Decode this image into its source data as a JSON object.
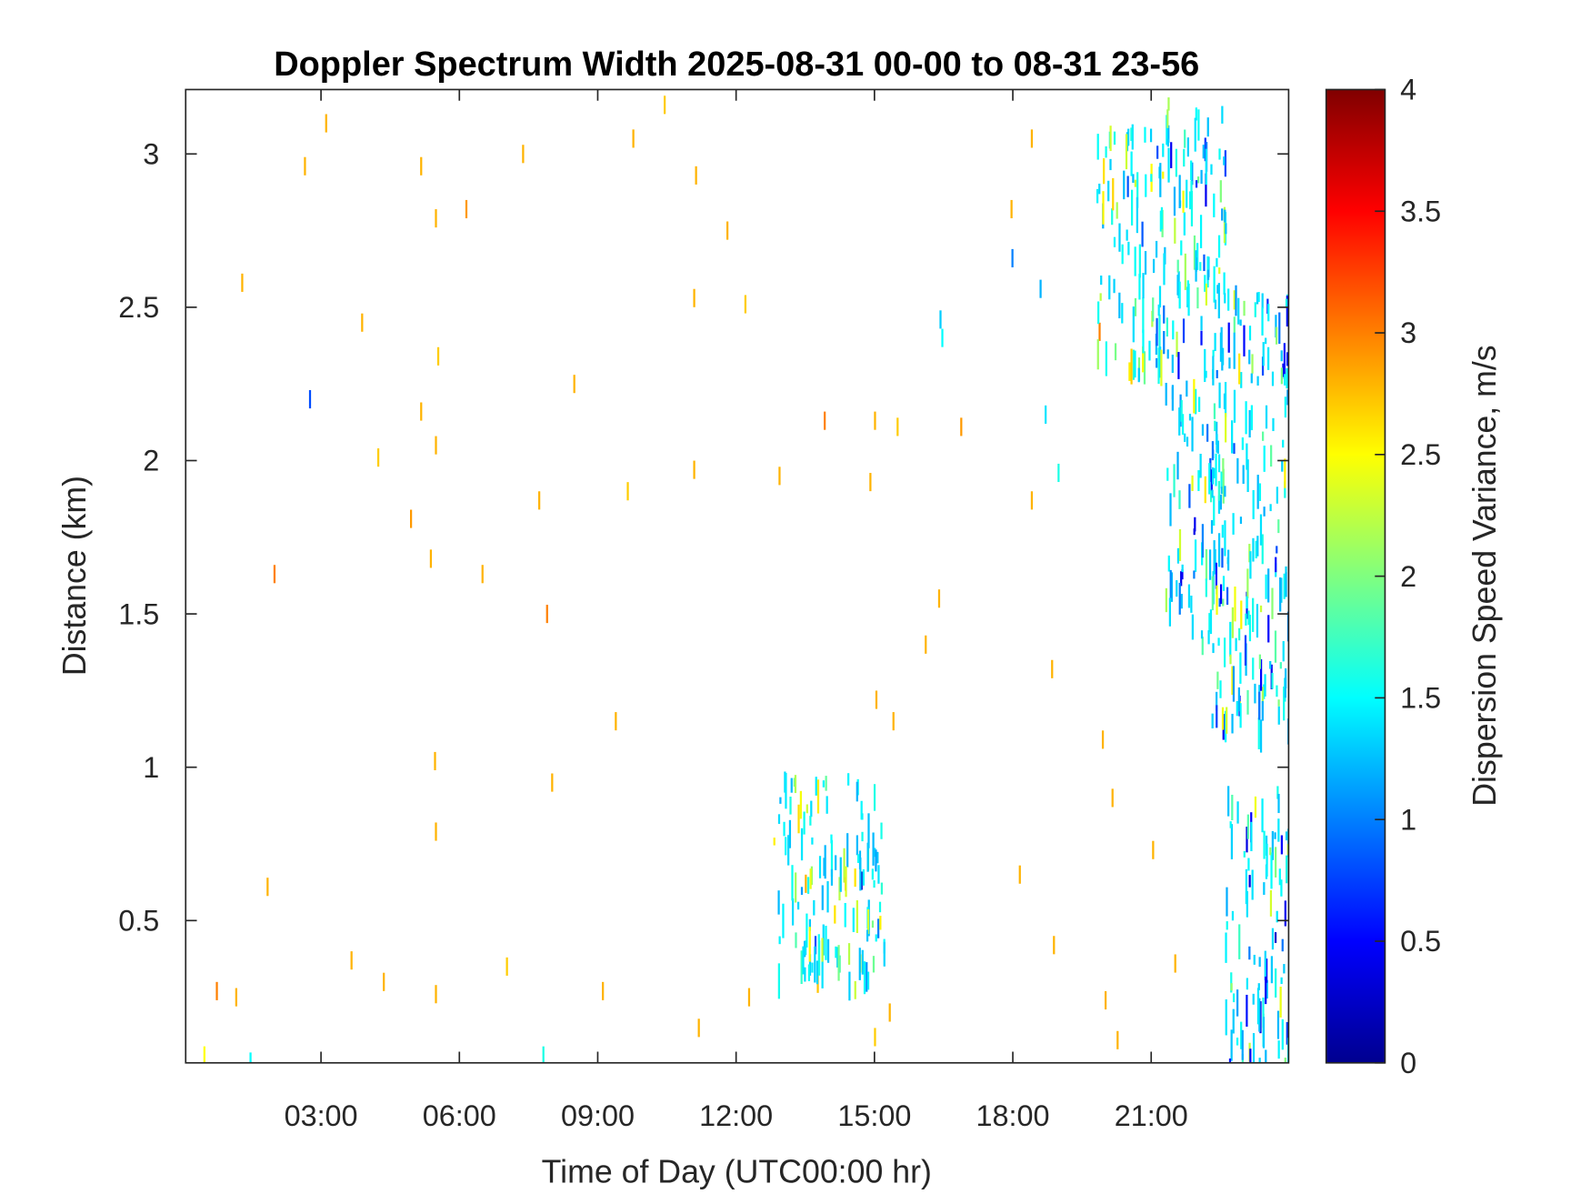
{
  "chart_data": {
    "type": "heatmap",
    "title": "Doppler Spectrum Width 2025-08-31 00-00 to 08-31 23-56",
    "xlabel": "Time of Day (UTC00:00 hr)",
    "ylabel": "Distance (km)",
    "colorbar": {
      "label": "Dispersion Speed Variance, m/s",
      "colormap": "jet",
      "range": [
        0,
        4
      ],
      "ticks": [
        0,
        0.5,
        1,
        1.5,
        2,
        2.5,
        3,
        3.5,
        4
      ],
      "tick_labels": [
        "0",
        "0.5",
        "1",
        "1.5",
        "2",
        "2.5",
        "3",
        "3.5",
        "4"
      ]
    },
    "xlim": [
      0.066,
      23.98
    ],
    "ylim": [
      0.036,
      3.21
    ],
    "x_ticks": [
      3,
      6,
      9,
      12,
      15,
      18,
      21
    ],
    "x_tick_labels": [
      "03:00",
      "06:00",
      "09:00",
      "12:00",
      "15:00",
      "18:00",
      "21:00"
    ],
    "y_ticks": [
      0.5,
      1,
      1.5,
      2,
      2.5,
      3
    ],
    "y_tick_labels": [
      "0.5",
      "1",
      "1.5",
      "2",
      "2.5",
      "3"
    ],
    "grid": false,
    "background": "#ffffff",
    "points_fields": [
      "time_hr",
      "distance_km",
      "width_m_s"
    ],
    "points": [
      [
        2.63,
        2.96,
        2.8
      ],
      [
        3.09,
        3.1,
        2.8
      ],
      [
        5.15,
        2.96,
        2.8
      ],
      [
        5.47,
        2.79,
        2.8
      ],
      [
        6.13,
        2.82,
        2.9
      ],
      [
        5.52,
        2.34,
        2.7
      ],
      [
        5.15,
        2.16,
        2.8
      ],
      [
        5.47,
        2.05,
        2.8
      ],
      [
        4.93,
        1.81,
        2.9
      ],
      [
        1.97,
        1.63,
        3.0
      ],
      [
        1.27,
        2.58,
        2.8
      ],
      [
        3.87,
        2.45,
        2.8
      ],
      [
        4.22,
        2.01,
        2.7
      ],
      [
        7.88,
        1.5,
        3.0
      ],
      [
        8.47,
        2.25,
        2.8
      ],
      [
        7.36,
        3.0,
        2.8
      ],
      [
        9.75,
        3.05,
        2.8
      ],
      [
        10.43,
        3.16,
        2.7
      ],
      [
        11.11,
        2.93,
        2.8
      ],
      [
        11.79,
        2.75,
        2.8
      ],
      [
        12.18,
        2.51,
        2.7
      ],
      [
        11.07,
        2.53,
        2.8
      ],
      [
        13.9,
        2.13,
        3.0
      ],
      [
        14.99,
        2.13,
        2.8
      ],
      [
        15.48,
        2.11,
        2.7
      ],
      [
        16.86,
        2.11,
        2.9
      ],
      [
        14.89,
        1.93,
        2.8
      ],
      [
        12.92,
        1.95,
        2.8
      ],
      [
        11.07,
        1.97,
        2.8
      ],
      [
        9.63,
        1.9,
        2.7
      ],
      [
        7.71,
        1.87,
        2.8
      ],
      [
        6.48,
        1.63,
        2.8
      ],
      [
        5.36,
        1.68,
        2.8
      ],
      [
        9.37,
        1.15,
        2.8
      ],
      [
        7.99,
        0.95,
        2.8
      ],
      [
        5.45,
        1.02,
        2.8
      ],
      [
        5.47,
        0.79,
        2.8
      ],
      [
        1.82,
        0.61,
        2.8
      ],
      [
        3.64,
        0.37,
        2.8
      ],
      [
        4.34,
        0.3,
        2.8
      ],
      [
        5.47,
        0.26,
        2.8
      ],
      [
        7.01,
        0.35,
        2.7
      ],
      [
        9.09,
        0.27,
        2.8
      ],
      [
        11.17,
        0.15,
        2.8
      ],
      [
        0.72,
        0.27,
        3.0
      ],
      [
        1.14,
        0.25,
        2.8
      ],
      [
        14.99,
        0.12,
        2.7
      ],
      [
        15.31,
        0.2,
        2.8
      ],
      [
        18.87,
        0.42,
        2.8
      ],
      [
        19.99,
        0.24,
        2.8
      ],
      [
        20.25,
        0.11,
        2.8
      ],
      [
        21.5,
        0.36,
        2.8
      ],
      [
        18.13,
        0.65,
        2.8
      ],
      [
        18.83,
        1.32,
        2.8
      ],
      [
        16.09,
        1.4,
        2.8
      ],
      [
        16.38,
        1.55,
        2.8
      ],
      [
        18.39,
        1.87,
        2.8
      ],
      [
        17.95,
        2.82,
        2.8
      ],
      [
        18.39,
        3.05,
        2.8
      ],
      [
        19.86,
        2.42,
        3.0
      ],
      [
        19.93,
        1.09,
        2.8
      ],
      [
        21.02,
        0.73,
        2.8
      ],
      [
        20.14,
        0.9,
        2.8
      ],
      [
        15.02,
        1.22,
        2.8
      ],
      [
        15.39,
        1.15,
        2.8
      ],
      [
        13.49,
        0.62,
        2.8
      ],
      [
        14.56,
        0.64,
        2.6
      ],
      [
        14.12,
        0.52,
        2.6
      ],
      [
        14.67,
        0.36,
        2.5
      ],
      [
        12.26,
        0.25,
        2.8
      ],
      [
        2.74,
        2.2,
        0.8
      ],
      [
        16.41,
        2.46,
        1.3
      ],
      [
        16.45,
        2.4,
        1.5
      ],
      [
        17.97,
        2.66,
        1.0
      ],
      [
        18.58,
        2.56,
        1.2
      ],
      [
        18.69,
        2.15,
        1.4
      ],
      [
        18.97,
        1.96,
        1.6
      ],
      [
        14.7,
        0.63,
        0.3
      ],
      [
        13.7,
        0.42,
        0.8
      ],
      [
        1.45,
        0.04,
        1.5
      ],
      [
        7.8,
        0.06,
        1.6
      ],
      [
        0.45,
        0.06,
        2.5
      ]
    ],
    "echo_regions": [
      {
        "time_hr": [
          21.3,
          22.6
        ],
        "distance_km": [
          1.4,
          3.2
        ],
        "width_m_s": [
          0.4,
          2.6
        ]
      },
      {
        "time_hr": [
          22.3,
          23.98
        ],
        "distance_km": [
          1.15,
          2.6
        ],
        "width_m_s": [
          0.4,
          2.6
        ]
      },
      {
        "time_hr": [
          22.6,
          23.98
        ],
        "distance_km": [
          0.04,
          0.95
        ],
        "width_m_s": [
          0.2,
          2.6
        ]
      },
      {
        "time_hr": [
          19.8,
          21.3
        ],
        "distance_km": [
          2.3,
          3.1
        ],
        "width_m_s": [
          0.8,
          2.8
        ]
      },
      {
        "time_hr": [
          12.8,
          15.2
        ],
        "distance_km": [
          0.3,
          1.0
        ],
        "width_m_s": [
          1.0,
          2.8
        ]
      }
    ]
  }
}
